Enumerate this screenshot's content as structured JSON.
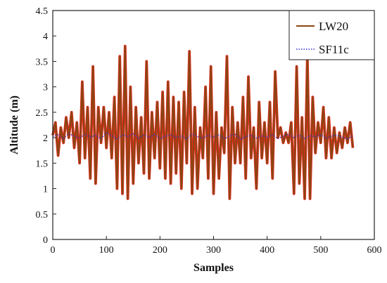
{
  "chart_data": {
    "type": "line",
    "xlabel": "Samples",
    "ylabel": "Altitude (m)",
    "xlim": [
      0,
      600
    ],
    "ylim": [
      0,
      4.5
    ],
    "x_ticks": [
      "0",
      "100",
      "200",
      "300",
      "400",
      "500",
      "600"
    ],
    "y_ticks": [
      "0",
      "0.5",
      "1",
      "1.5",
      "2",
      "2.5",
      "3",
      "3.5",
      "4",
      "4.5"
    ],
    "grid": false,
    "legend_position": "top-right",
    "series": [
      {
        "name": "LW20",
        "color": "#8B4513",
        "fill_color": "#E8281E",
        "style": "solid",
        "x": [
          0,
          5,
          10,
          15,
          20,
          25,
          30,
          35,
          40,
          45,
          50,
          55,
          60,
          65,
          70,
          75,
          80,
          85,
          90,
          95,
          100,
          105,
          110,
          115,
          120,
          125,
          130,
          135,
          140,
          145,
          150,
          155,
          160,
          165,
          170,
          175,
          180,
          185,
          190,
          195,
          200,
          205,
          210,
          215,
          220,
          225,
          230,
          235,
          240,
          245,
          250,
          255,
          260,
          265,
          270,
          275,
          280,
          285,
          290,
          295,
          300,
          305,
          310,
          315,
          320,
          325,
          330,
          335,
          340,
          345,
          350,
          355,
          360,
          365,
          370,
          375,
          380,
          385,
          390,
          395,
          400,
          405,
          410,
          415,
          420,
          425,
          430,
          435,
          440,
          445,
          450,
          455,
          460,
          465,
          470,
          475,
          480,
          485,
          490,
          495,
          500,
          505,
          510,
          515,
          520,
          525,
          530,
          535,
          540,
          545,
          550,
          555,
          560
        ],
        "values": [
          2.05,
          2.3,
          1.65,
          2.2,
          1.9,
          2.4,
          2.0,
          2.5,
          1.8,
          2.3,
          1.5,
          3.1,
          1.6,
          2.6,
          1.2,
          3.4,
          1.1,
          2.6,
          1.9,
          2.6,
          1.8,
          2.5,
          1.6,
          2.8,
          1.0,
          3.6,
          0.9,
          3.8,
          0.8,
          3.0,
          1.1,
          2.6,
          1.5,
          2.4,
          1.3,
          3.5,
          1.2,
          2.5,
          1.6,
          2.7,
          1.4,
          2.9,
          1.2,
          3.1,
          1.1,
          2.8,
          1.3,
          2.7,
          1.0,
          2.9,
          1.5,
          3.7,
          0.9,
          2.6,
          1.0,
          2.2,
          1.6,
          3.0,
          1.2,
          3.4,
          0.9,
          2.5,
          1.2,
          2.2,
          1.7,
          3.6,
          0.8,
          2.6,
          1.5,
          2.3,
          1.5,
          2.8,
          1.2,
          3.2,
          1.6,
          2.2,
          1.0,
          2.7,
          1.6,
          2.3,
          1.5,
          2.7,
          1.2,
          3.3,
          2.0,
          2.2,
          1.9,
          2.1,
          1.9,
          2.3,
          0.9,
          3.4,
          1.1,
          2.4,
          0.8,
          3.6,
          0.8,
          2.8,
          1.7,
          2.3,
          1.9,
          2.6,
          1.6,
          2.4,
          1.6,
          2.2,
          1.7,
          2.1,
          1.8,
          2.2,
          1.9,
          2.3,
          1.8
        ],
        "line_width": 2.2
      },
      {
        "name": "SF11c",
        "color": "#3333CC",
        "style": "dotted",
        "x": [
          0,
          10,
          20,
          30,
          40,
          50,
          60,
          70,
          80,
          90,
          100,
          110,
          120,
          130,
          140,
          150,
          160,
          170,
          180,
          190,
          200,
          210,
          220,
          230,
          240,
          250,
          260,
          270,
          280,
          290,
          300,
          310,
          320,
          330,
          340,
          350,
          360,
          370,
          380,
          390,
          400,
          410,
          420,
          430,
          440,
          450,
          460,
          470,
          480,
          490,
          500,
          510,
          520,
          530,
          540,
          550,
          560
        ],
        "values": [
          2.02,
          2.06,
          1.98,
          2.08,
          2.03,
          1.99,
          2.07,
          2.01,
          2.05,
          1.98,
          2.1,
          2.04,
          1.97,
          2.06,
          2.02,
          2.08,
          1.99,
          2.05,
          2.01,
          2.07,
          1.98,
          2.03,
          2.06,
          2.0,
          2.04,
          1.97,
          2.08,
          2.02,
          1.99,
          2.05,
          2.01,
          2.06,
          1.98,
          2.03,
          2.07,
          1.97,
          2.02,
          2.05,
          1.99,
          2.04,
          2.01,
          2.06,
          1.98,
          2.03,
          2.07,
          2.0,
          2.05,
          1.98,
          2.04,
          2.02,
          2.06,
          1.99,
          2.03,
          2.05,
          2.01,
          1.98,
          2.04
        ],
        "line_width": 1.4
      }
    ]
  }
}
